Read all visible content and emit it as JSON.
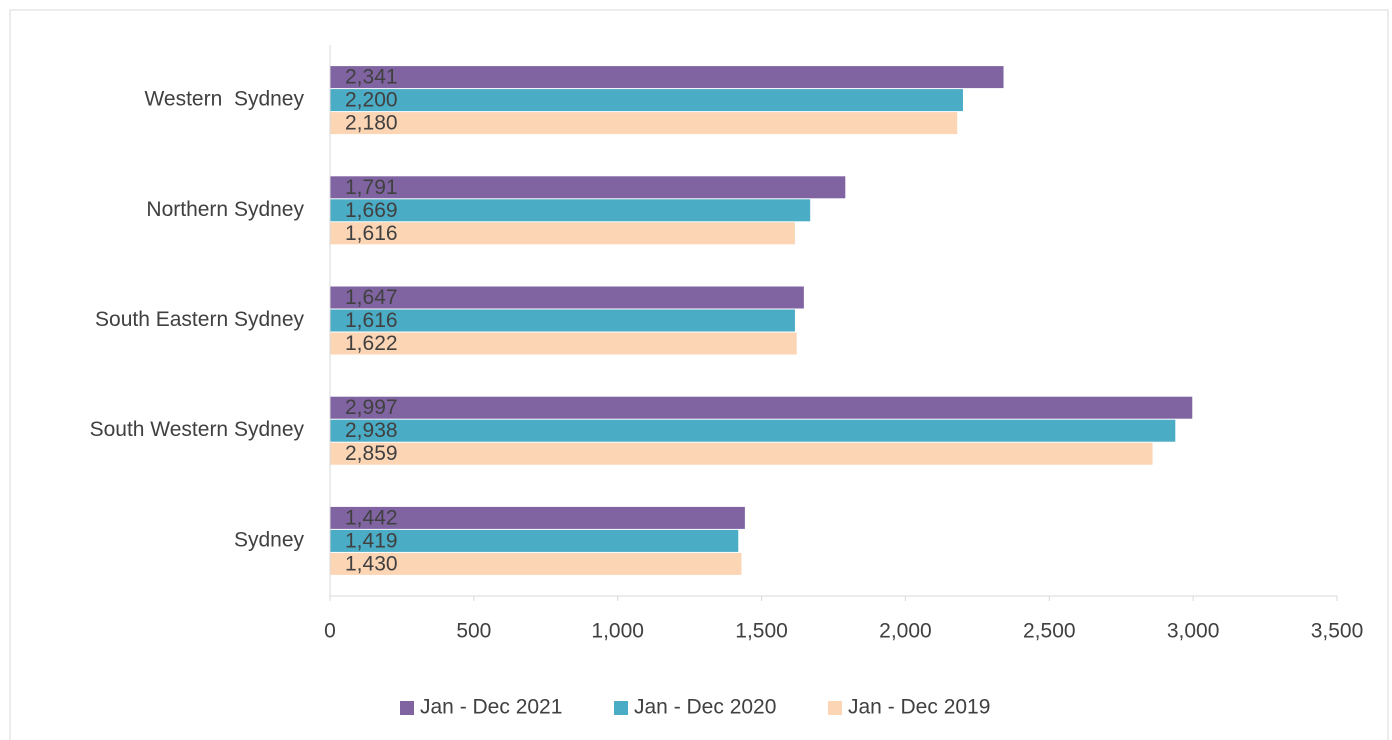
{
  "chart_data": {
    "type": "barh",
    "categories": [
      "Western  Sydney",
      "Northern Sydney",
      "South Eastern Sydney",
      "South Western Sydney",
      "Sydney"
    ],
    "series": [
      {
        "name": "Jan - Dec 2021",
        "color": "#8064a2",
        "values": [
          2341,
          1791,
          1647,
          2997,
          1442
        ],
        "value_labels": [
          "2,341",
          "1,791",
          "1,647",
          "2,997",
          "1,442"
        ]
      },
      {
        "name": "Jan - Dec 2020",
        "color": "#4bacc6",
        "values": [
          2200,
          1669,
          1616,
          2938,
          1419
        ],
        "value_labels": [
          "2,200",
          "1,669",
          "1,616",
          "2,938",
          "1,419"
        ]
      },
      {
        "name": "Jan - Dec 2019",
        "color": "#fcd5b5",
        "values": [
          2180,
          1616,
          1622,
          2859,
          1430
        ],
        "value_labels": [
          "2,180",
          "1,616",
          "1,622",
          "2,859",
          "1,430"
        ]
      }
    ],
    "xlim": [
      0,
      3500
    ],
    "xticks": [
      0,
      500,
      {
        "value": 1000,
        "label": "1,000"
      },
      {
        "value": 1500,
        "label": "1,500"
      },
      {
        "value": 2000,
        "label": "2,000"
      },
      {
        "value": 2500,
        "label": "2,500"
      },
      {
        "value": 3000,
        "label": "3,000"
      },
      {
        "value": 3500,
        "label": "3,500"
      }
    ],
    "legend": "bottom"
  }
}
